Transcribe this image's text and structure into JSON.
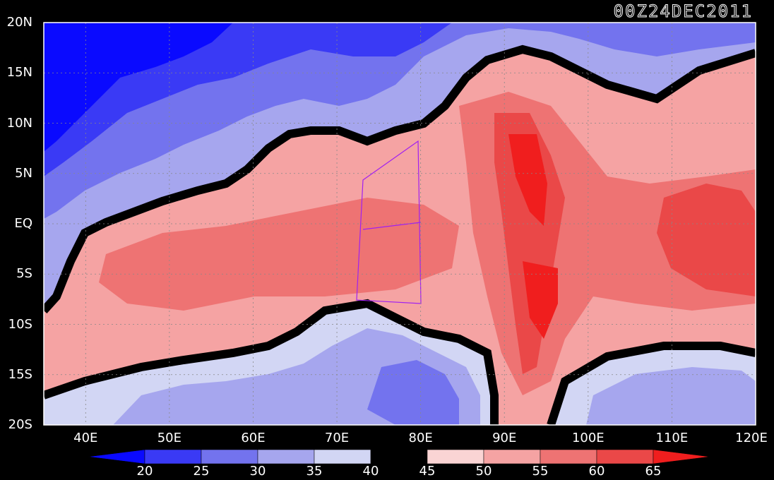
{
  "title": "00Z24DEC2011",
  "map": {
    "lon_range": [
      35,
      120
    ],
    "lat_range": [
      -20,
      20
    ],
    "lat_labels": [
      {
        "value": 20,
        "text": "20N"
      },
      {
        "value": 15,
        "text": "15N"
      },
      {
        "value": 10,
        "text": "10N"
      },
      {
        "value": 5,
        "text": "5N"
      },
      {
        "value": 0,
        "text": "EQ"
      },
      {
        "value": -5,
        "text": "5S"
      },
      {
        "value": -10,
        "text": "10S"
      },
      {
        "value": -15,
        "text": "15S"
      },
      {
        "value": -20,
        "text": "20S"
      }
    ],
    "lon_labels": [
      {
        "value": 40,
        "text": "40E"
      },
      {
        "value": 50,
        "text": "50E"
      },
      {
        "value": 60,
        "text": "60E"
      },
      {
        "value": 70,
        "text": "70E"
      },
      {
        "value": 80,
        "text": "80E"
      },
      {
        "value": 90,
        "text": "90E"
      },
      {
        "value": 100,
        "text": "100E"
      },
      {
        "value": 110,
        "text": "110E"
      },
      {
        "value": 120,
        "text": "120E"
      }
    ],
    "box_outline_color": "#a020f0"
  },
  "colorbar": {
    "levels": [
      "20",
      "25",
      "30",
      "35",
      "40",
      "45",
      "50",
      "55",
      "60",
      "65"
    ],
    "colors": [
      "#0a0aff",
      "#3a3af5",
      "#7373ee",
      "#a6a6ee",
      "#d2d6f4",
      "#000000",
      "#fad4d4",
      "#f5a3a3",
      "#ee7373",
      "#ea4848",
      "#f01e1e"
    ]
  }
}
